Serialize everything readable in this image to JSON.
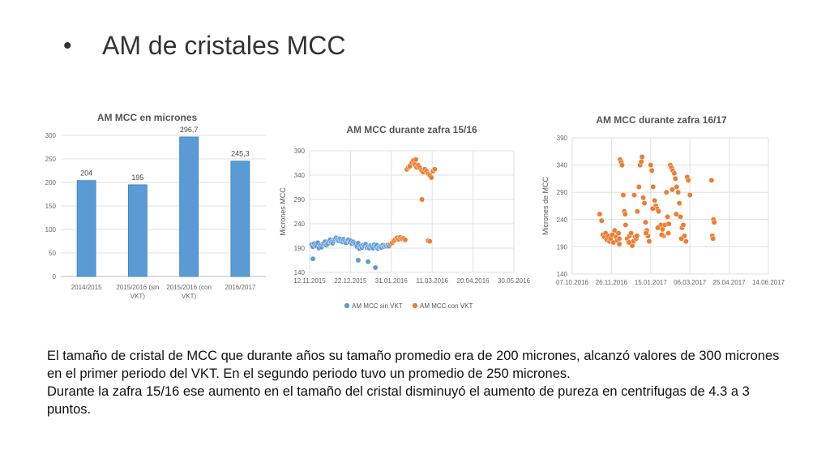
{
  "slide": {
    "bullet": "•",
    "title": "AM de cristales MCC",
    "paragraphs": [
      "El tamaño de cristal de MCC que durante años su tamaño promedio era de 200 micrones, alcanzó valores de 300 micrones en el primer periodo del VKT. En el segundo periodo tuvo un promedio de 250 micrones.",
      "Durante la zafra 15/16 ese aumento en el tamaño del cristal disminuyó el aumento de pureza en centrifugas de 4.3 a 3 puntos."
    ]
  },
  "chart_data": [
    {
      "type": "bar",
      "title": "AM MCC en micrones",
      "categories": [
        "2014/2015",
        "2015/2016 (sin VKT)",
        "2015/2016 (con VKT)",
        "2016/2017"
      ],
      "category_lines": [
        [
          "2014/2015"
        ],
        [
          "2015/2016 (sin",
          "VKT)"
        ],
        [
          "2015/2016 (con",
          "VKT)"
        ],
        [
          "2016/2017"
        ]
      ],
      "values": [
        204,
        195,
        296.7,
        245.3
      ],
      "value_labels": [
        "204",
        "195",
        "296,7",
        "245,3"
      ],
      "ylim": [
        0,
        300
      ],
      "yticks": [
        0,
        50,
        100,
        150,
        200,
        250,
        300
      ],
      "color": "#5b9bd5",
      "grid": true
    },
    {
      "type": "scatter",
      "title": "AM MCC durante zafra 15/16",
      "ylabel": "Micrones MCC",
      "ylim": [
        140,
        390
      ],
      "yticks": [
        140,
        190,
        240,
        290,
        340,
        390
      ],
      "xticks": [
        "12.11.2015",
        "22.12.2015",
        "31.01.2016",
        "11.03.2016",
        "20.04.2016",
        "30.05.2016"
      ],
      "xlim_index": [
        0,
        5
      ],
      "legend_position": "bottom",
      "grid": true,
      "series": [
        {
          "name": "AM MCC sin VKT",
          "color": "#5b9bd5",
          "points": [
            [
              0.05,
              197
            ],
            [
              0.08,
              193
            ],
            [
              0.11,
              199
            ],
            [
              0.14,
              196
            ],
            [
              0.17,
              194
            ],
            [
              0.2,
              201
            ],
            [
              0.23,
              190
            ],
            [
              0.26,
              196
            ],
            [
              0.29,
              192
            ],
            [
              0.32,
              198
            ],
            [
              0.35,
              200
            ],
            [
              0.38,
              203
            ],
            [
              0.41,
              196
            ],
            [
              0.44,
              199
            ],
            [
              0.47,
              204
            ],
            [
              0.5,
              207
            ],
            [
              0.53,
              202
            ],
            [
              0.56,
              200
            ],
            [
              0.59,
              205
            ],
            [
              0.62,
              209
            ],
            [
              0.65,
              211
            ],
            [
              0.68,
              208
            ],
            [
              0.71,
              205
            ],
            [
              0.74,
              209
            ],
            [
              0.77,
              206
            ],
            [
              0.8,
              203
            ],
            [
              0.83,
              208
            ],
            [
              0.86,
              204
            ],
            [
              0.89,
              201
            ],
            [
              0.92,
              205
            ],
            [
              0.95,
              207
            ],
            [
              0.98,
              202
            ],
            [
              1.01,
              205
            ],
            [
              1.04,
              199
            ],
            [
              1.07,
              203
            ],
            [
              1.1,
              200
            ],
            [
              1.13,
              197
            ],
            [
              1.16,
              193
            ],
            [
              1.19,
              200
            ],
            [
              1.22,
              189
            ],
            [
              1.25,
              194
            ],
            [
              1.28,
              191
            ],
            [
              1.31,
              196
            ],
            [
              1.34,
              194
            ],
            [
              1.37,
              198
            ],
            [
              1.4,
              191
            ],
            [
              1.43,
              193
            ],
            [
              1.46,
              190
            ],
            [
              1.49,
              195
            ],
            [
              1.52,
              193
            ],
            [
              1.55,
              190
            ],
            [
              1.58,
              197
            ],
            [
              1.61,
              194
            ],
            [
              1.64,
              196
            ],
            [
              1.67,
              189
            ],
            [
              1.7,
              192
            ],
            [
              1.73,
              193
            ],
            [
              1.76,
              191
            ],
            [
              1.79,
              196
            ],
            [
              1.82,
              193
            ],
            [
              1.85,
              195
            ],
            [
              1.88,
              194
            ],
            [
              1.91,
              196
            ],
            [
              1.94,
              194
            ],
            [
              0.08,
              168
            ],
            [
              1.19,
              165
            ],
            [
              1.43,
              162
            ],
            [
              1.61,
              150
            ]
          ]
        },
        {
          "name": "AM MCC con VKT",
          "color": "#ed7d31",
          "points": [
            [
              1.98,
              198
            ],
            [
              2.02,
              201
            ],
            [
              2.06,
              205
            ],
            [
              2.1,
              208
            ],
            [
              2.14,
              211
            ],
            [
              2.18,
              208
            ],
            [
              2.22,
              212
            ],
            [
              2.26,
              209
            ],
            [
              2.3,
              210
            ],
            [
              2.34,
              207
            ],
            [
              2.38,
              352
            ],
            [
              2.42,
              356
            ],
            [
              2.46,
              360
            ],
            [
              2.5,
              365
            ],
            [
              2.54,
              370
            ],
            [
              2.58,
              362
            ],
            [
              2.62,
              356
            ],
            [
              2.66,
              360
            ],
            [
              2.7,
              355
            ],
            [
              2.74,
              350
            ],
            [
              2.78,
              346
            ],
            [
              2.82,
              352
            ],
            [
              2.86,
              348
            ],
            [
              2.9,
              343
            ],
            [
              2.94,
              340
            ],
            [
              2.98,
              335
            ],
            [
              3.02,
              348
            ],
            [
              3.06,
              352
            ],
            [
              2.45,
              358
            ],
            [
              2.6,
              372
            ],
            [
              2.75,
              290
            ],
            [
              2.9,
              205
            ],
            [
              2.94,
              204
            ]
          ]
        }
      ]
    },
    {
      "type": "scatter",
      "title": "AM MCC durante zafra 16/17",
      "ylabel": "Micrones de MCC",
      "ylim": [
        140,
        390
      ],
      "yticks": [
        140,
        190,
        240,
        290,
        340,
        390
      ],
      "xticks": [
        "07.10.2016",
        "26.11.2016",
        "15.01.2017",
        "06.03.2017",
        "25.04.2017",
        "14.06.2017"
      ],
      "xlim_index": [
        0,
        5
      ],
      "grid": true,
      "series": [
        {
          "name": "",
          "color": "#ed7d31",
          "points": [
            [
              0.7,
              250
            ],
            [
              0.75,
              238
            ],
            [
              0.78,
              212
            ],
            [
              0.82,
              208
            ],
            [
              0.85,
              215
            ],
            [
              0.88,
              203
            ],
            [
              0.92,
              210
            ],
            [
              0.95,
              200
            ],
            [
              0.98,
              205
            ],
            [
              1.02,
              212
            ],
            [
              1.05,
              198
            ],
            [
              1.08,
              220
            ],
            [
              1.12,
              208
            ],
            [
              1.15,
              202
            ],
            [
              1.18,
              215
            ],
            [
              1.2,
              205
            ],
            [
              1.22,
              350
            ],
            [
              1.25,
              345
            ],
            [
              1.27,
              340
            ],
            [
              1.3,
              285
            ],
            [
              1.33,
              255
            ],
            [
              1.36,
              230
            ],
            [
              1.4,
              205
            ],
            [
              1.43,
              198
            ],
            [
              1.46,
              210
            ],
            [
              1.5,
              215
            ],
            [
              1.53,
              192
            ],
            [
              1.56,
              200
            ],
            [
              1.6,
              208
            ],
            [
              1.63,
              205
            ],
            [
              1.66,
              255
            ],
            [
              1.7,
              300
            ],
            [
              1.73,
              340
            ],
            [
              1.76,
              346
            ],
            [
              1.78,
              355
            ],
            [
              1.81,
              280
            ],
            [
              1.84,
              270
            ],
            [
              1.87,
              235
            ],
            [
              1.9,
              220
            ],
            [
              1.93,
              210
            ],
            [
              1.96,
              200
            ],
            [
              2.0,
              340
            ],
            [
              2.03,
              330
            ],
            [
              2.06,
              300
            ],
            [
              2.1,
              275
            ],
            [
              2.13,
              265
            ],
            [
              2.16,
              260
            ],
            [
              2.2,
              255
            ],
            [
              2.23,
              225
            ],
            [
              2.26,
              230
            ],
            [
              2.3,
              222
            ],
            [
              2.33,
              210
            ],
            [
              2.36,
              230
            ],
            [
              2.4,
              290
            ],
            [
              2.43,
              245
            ],
            [
              2.46,
              232
            ],
            [
              2.5,
              340
            ],
            [
              2.53,
              335
            ],
            [
              2.56,
              330
            ],
            [
              2.6,
              325
            ],
            [
              2.63,
              315
            ],
            [
              2.66,
              300
            ],
            [
              2.7,
              290
            ],
            [
              2.73,
              270
            ],
            [
              2.76,
              245
            ],
            [
              2.8,
              225
            ],
            [
              2.83,
              230
            ],
            [
              2.86,
              210
            ],
            [
              2.9,
              200
            ],
            [
              2.93,
              318
            ],
            [
              2.96,
              312
            ],
            [
              3.0,
              285
            ],
            [
              1.35,
              250
            ],
            [
              1.45,
              198
            ],
            [
              1.58,
              285
            ],
            [
              1.88,
              215
            ],
            [
              2.05,
              260
            ],
            [
              2.28,
              212
            ],
            [
              2.55,
              295
            ],
            [
              2.65,
              250
            ],
            [
              3.55,
              312
            ],
            [
              3.6,
              240
            ],
            [
              3.62,
              235
            ],
            [
              3.57,
              210
            ],
            [
              3.59,
              205
            ],
            [
              1.2,
              195
            ],
            [
              1.65,
              210
            ],
            [
              2.18,
              225
            ],
            [
              2.45,
              215
            ],
            [
              2.78,
              205
            ]
          ]
        }
      ]
    }
  ]
}
